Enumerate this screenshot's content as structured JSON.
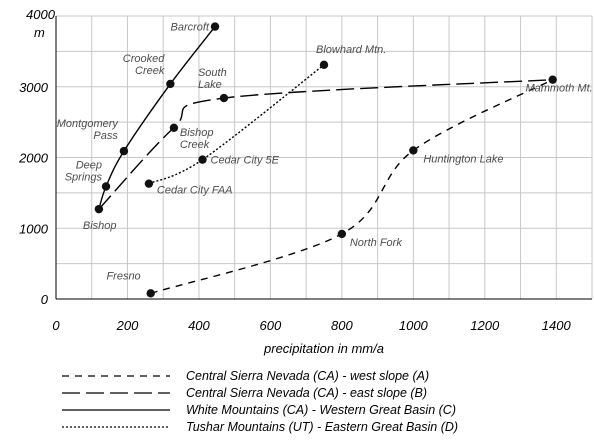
{
  "chart_data": {
    "type": "line",
    "xlabel": "precipitation in mm/a",
    "ylabel": "m",
    "ylabel_top": "4000",
    "xlim": [
      0,
      1500
    ],
    "ylim": [
      0,
      4000
    ],
    "xticks": [
      0,
      200,
      400,
      600,
      800,
      1000,
      1200,
      1400
    ],
    "yticks": [
      0,
      1000,
      2000,
      3000,
      4000
    ],
    "grid": true,
    "legend_position": "bottom",
    "series": [
      {
        "name": "Central Sierra Nevada (CA) - west slope (A)",
        "style": "short-dash",
        "points": [
          {
            "x": 265,
            "y": 80,
            "label": "Fresno"
          },
          {
            "x": 800,
            "y": 920,
            "label": "North Fork"
          },
          {
            "x": 1000,
            "y": 2100,
            "label": "Huntington Lake"
          },
          {
            "x": 1390,
            "y": 3100,
            "label": "Mammoth Mt."
          }
        ]
      },
      {
        "name": "Central Sierra Nevada (CA) - east slope (B)",
        "style": "long-dash",
        "points": [
          {
            "x": 120,
            "y": 1270,
            "label": "Bishop"
          },
          {
            "x": 330,
            "y": 2420,
            "label": "Bishop Creek"
          },
          {
            "x": 470,
            "y": 2840,
            "label": "South Lake"
          },
          {
            "x": 1390,
            "y": 3100,
            "label": "Mammoth Mt."
          }
        ]
      },
      {
        "name": "White Mountains (CA) - Western Great Basin (C)",
        "style": "solid",
        "points": [
          {
            "x": 120,
            "y": 1270,
            "label": "Bishop"
          },
          {
            "x": 140,
            "y": 1590,
            "label": "Deep Springs"
          },
          {
            "x": 190,
            "y": 2090,
            "label": "Montgomery Pass"
          },
          {
            "x": 320,
            "y": 3040,
            "label": "Crooked Creek"
          },
          {
            "x": 445,
            "y": 3850,
            "label": "Barcroft"
          }
        ]
      },
      {
        "name": "Tushar Mountains (UT) - Eastern Great Basin (D)",
        "style": "dotted",
        "points": [
          {
            "x": 260,
            "y": 1630,
            "label": "Cedar City FAA"
          },
          {
            "x": 410,
            "y": 1970,
            "label": "Cedar City 5E"
          },
          {
            "x": 750,
            "y": 3310,
            "label": "Blowhard Mtn."
          }
        ]
      }
    ]
  }
}
